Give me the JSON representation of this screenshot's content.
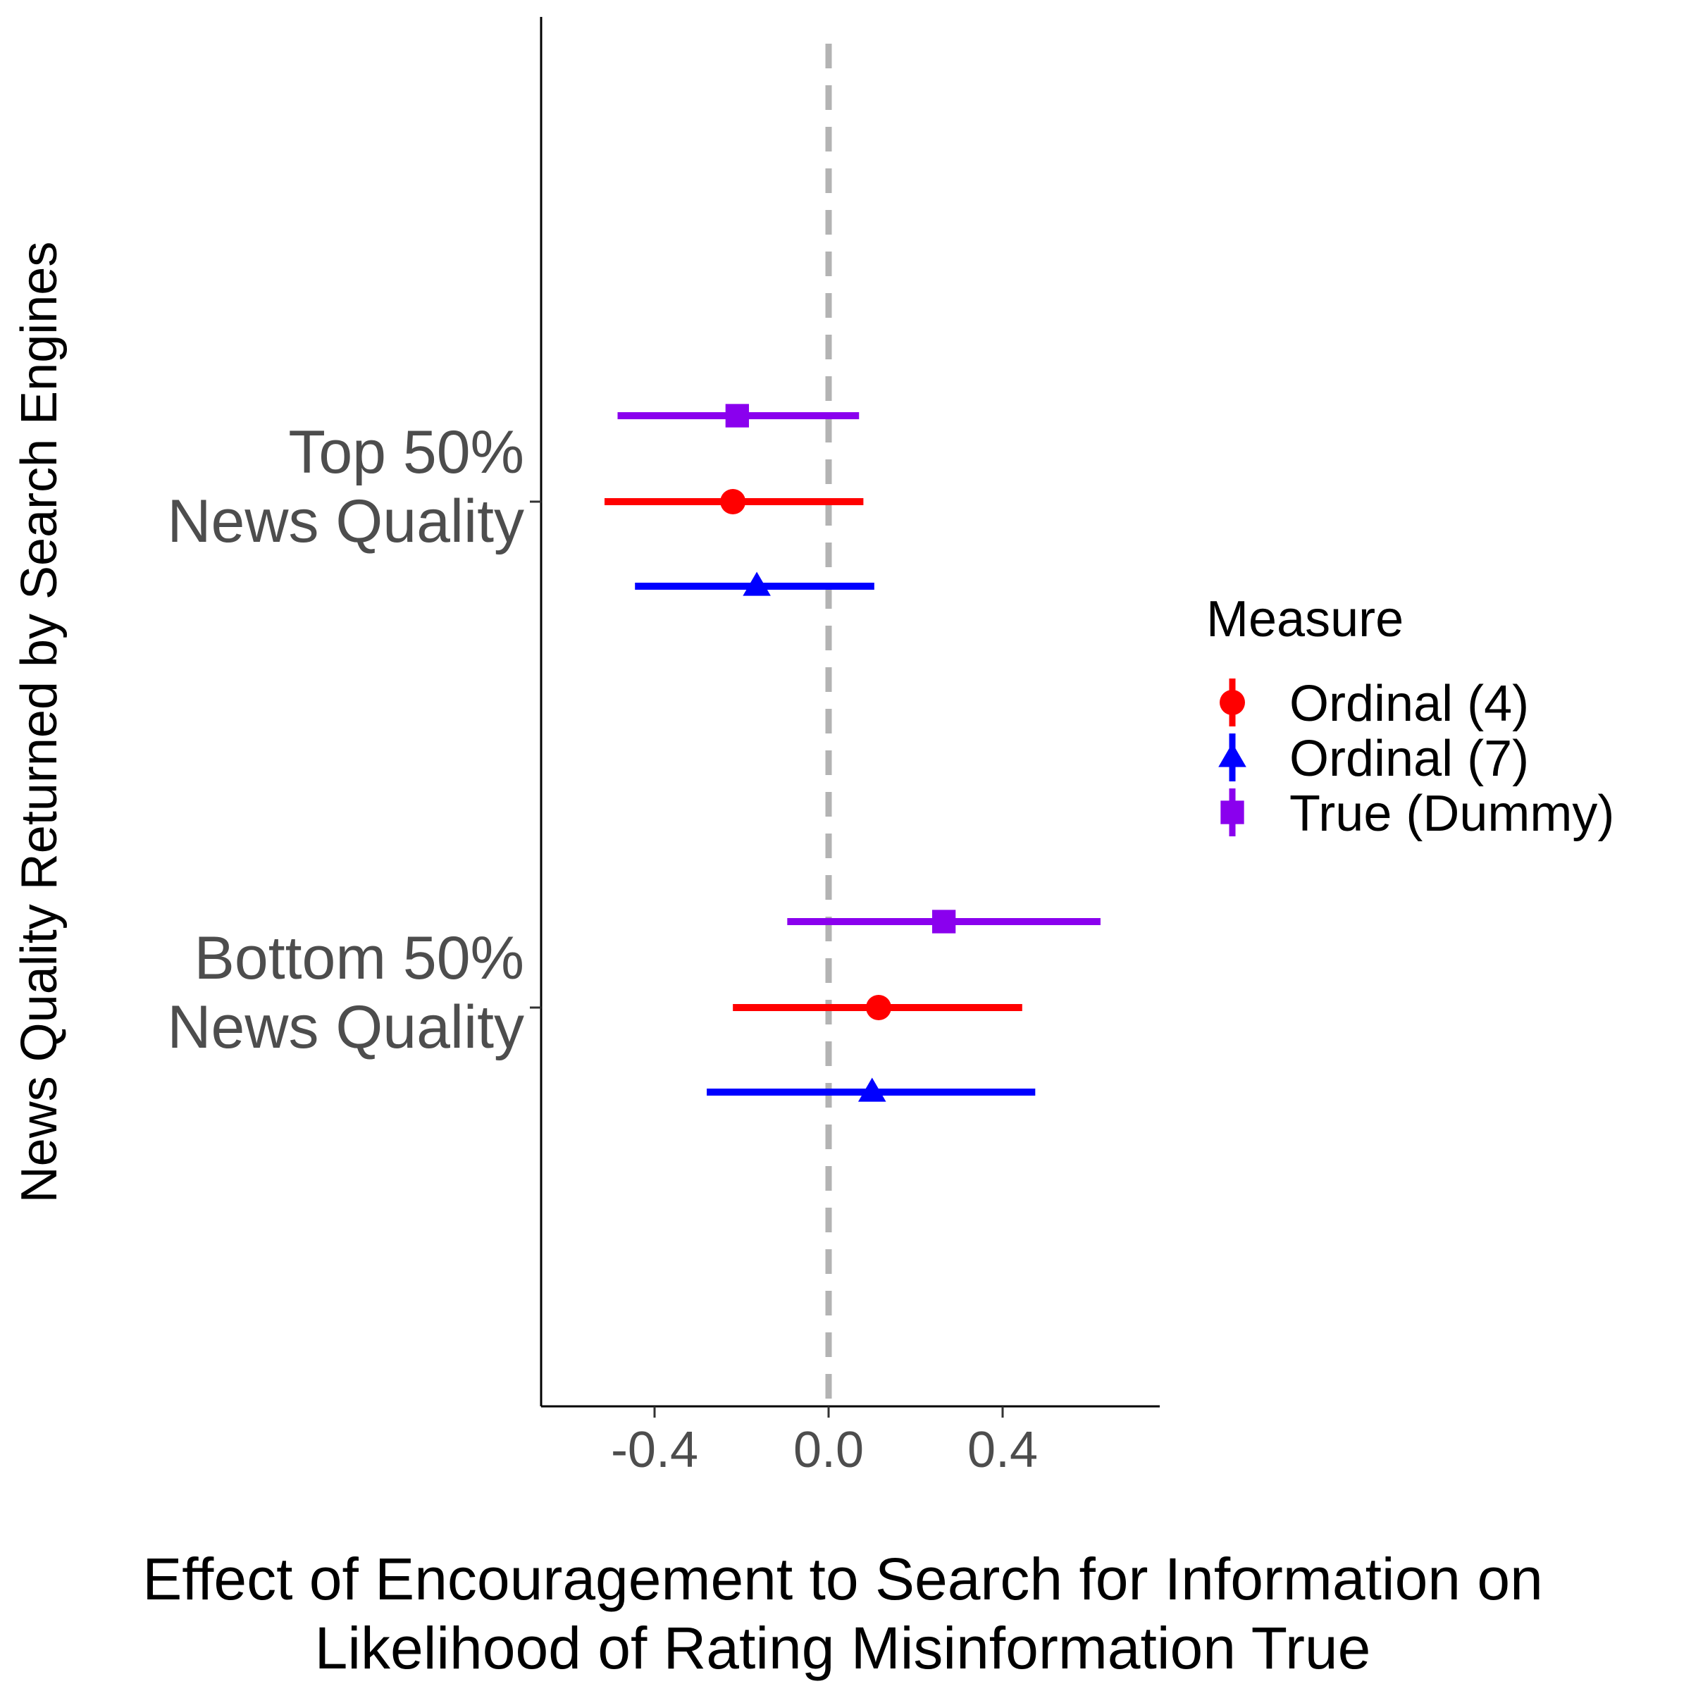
{
  "chart_data": {
    "type": "forest",
    "categories": [
      "Top 50%\nNews Quality",
      "Bottom 50%\nNews Quality"
    ],
    "xlabel": "Effect of Encouragement to Search for Information on\nLikelihood of Rating Misinformation True",
    "ylabel": "News Quality Returned by Search Engines",
    "xlim": [
      -0.67,
      0.77
    ],
    "xticks": [
      -0.4,
      0.0,
      0.4
    ],
    "xtick_labels": [
      "-0.4",
      "0.0",
      "0.4"
    ],
    "reference_line": 0.0,
    "grid": false,
    "legend": {
      "title": "Measure",
      "placement": "right"
    },
    "series": [
      {
        "name": "Ordinal (4)",
        "shape": "circle",
        "color": "#ff0000",
        "points": [
          {
            "category": "Top 50%\nNews Quality",
            "estimate": -0.22,
            "low": -0.515,
            "high": 0.08
          },
          {
            "category": "Bottom 50%\nNews Quality",
            "estimate": 0.115,
            "low": -0.22,
            "high": 0.445
          }
        ]
      },
      {
        "name": "Ordinal (7)",
        "shape": "triangle",
        "color": "#0000ff",
        "points": [
          {
            "category": "Top 50%\nNews Quality",
            "estimate": -0.165,
            "low": -0.445,
            "high": 0.105
          },
          {
            "category": "Bottom 50%\nNews Quality",
            "estimate": 0.1,
            "low": -0.28,
            "high": 0.475
          }
        ]
      },
      {
        "name": "True (Dummy)",
        "shape": "square",
        "color": "#8a00ee",
        "points": [
          {
            "category": "Top 50%\nNews Quality",
            "estimate": -0.21,
            "low": -0.485,
            "high": 0.07
          },
          {
            "category": "Bottom 50%\nNews Quality",
            "estimate": 0.265,
            "low": -0.095,
            "high": 0.625
          }
        ]
      }
    ]
  }
}
